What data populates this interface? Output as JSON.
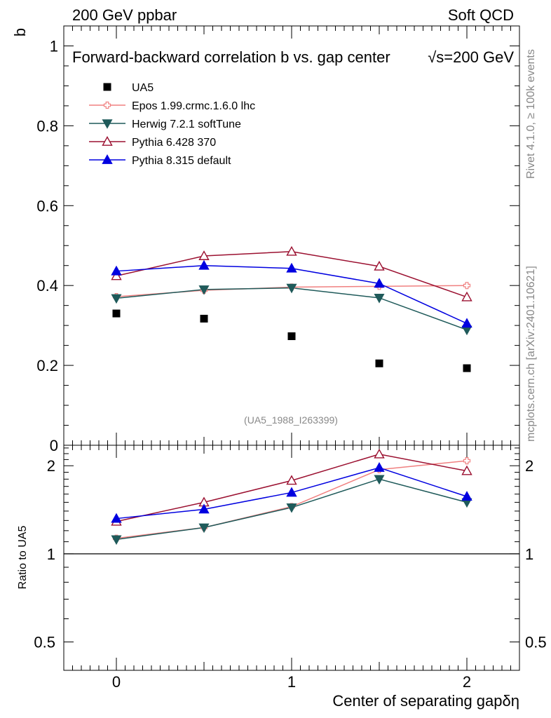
{
  "header": {
    "left": "200 GeV ppbar",
    "right": "Soft QCD"
  },
  "side": {
    "rivet": "Rivet 4.1.0, ≥ 100k events",
    "mcplots": "mcplots.cern.ch [arXiv:2401.10621]"
  },
  "chart_data": {
    "type": "scatter",
    "title": "Forward-backward correlation b  vs. gap center",
    "title_energy": "√s=200 GeV",
    "analysis_id": "(UA5_1988_I263399)",
    "xlabel": "Center of separating gapδη",
    "ylabel": "b",
    "ratio_ylabel": "Ratio to UA5",
    "x": [
      0,
      0.5,
      1,
      1.5,
      2
    ],
    "xlim": [
      -0.3,
      2.3
    ],
    "ylim": [
      0,
      1.05
    ],
    "ratio_ylim": [
      0.4,
      2.35
    ],
    "x_ticks": [
      "0",
      "1",
      "2"
    ],
    "y_ticks": [
      "0",
      "0.2",
      "0.4",
      "0.6",
      "0.8",
      "1"
    ],
    "ratio_ticks": [
      "0.5",
      "1",
      "2"
    ],
    "reference": {
      "name": "UA5",
      "color": "#000000",
      "values": [
        0.33,
        0.317,
        0.273,
        0.205,
        0.193
      ]
    },
    "series": [
      {
        "name": "Epos 1.99.crmc.1.6.0 lhc",
        "color": "#f08080",
        "marker": "cross-open",
        "values": [
          0.372,
          0.388,
          0.396,
          0.398,
          0.4
        ],
        "ratio": [
          1.13,
          1.23,
          1.45,
          1.94,
          2.08
        ]
      },
      {
        "name": "Herwig 7.2.1 softTune",
        "color": "#1f5a5a",
        "marker": "triangle-down",
        "values": [
          0.368,
          0.39,
          0.394,
          0.369,
          0.289
        ],
        "ratio": [
          1.12,
          1.23,
          1.44,
          1.8,
          1.5
        ]
      },
      {
        "name": "Pythia 6.428 370",
        "color": "#9b1030",
        "marker": "triangle-open",
        "values": [
          0.424,
          0.474,
          0.485,
          0.448,
          0.371
        ],
        "ratio": [
          1.29,
          1.5,
          1.78,
          2.19,
          1.92
        ]
      },
      {
        "name": "Pythia 8.315 default",
        "color": "#0000e0",
        "marker": "triangle-up",
        "values": [
          0.436,
          0.45,
          0.443,
          0.405,
          0.305
        ],
        "ratio": [
          1.32,
          1.42,
          1.62,
          1.97,
          1.57
        ]
      }
    ]
  }
}
